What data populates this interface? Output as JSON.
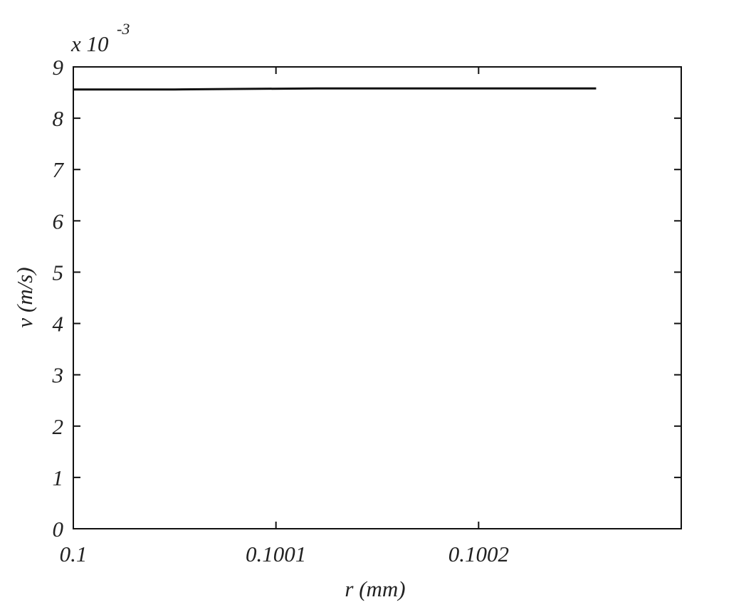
{
  "chart_data": {
    "type": "line",
    "x_label": "r (mm)",
    "y_label": "v (m/s)",
    "y_multiplier": {
      "base": "x 10",
      "exponent": "-3"
    },
    "x": [
      0.1,
      0.10005,
      0.10008,
      0.10012,
      0.100258
    ],
    "series": [
      {
        "color": "#111111",
        "values": [
          8.56,
          8.56,
          8.57,
          8.58,
          8.58
        ]
      }
    ],
    "xlim": [
      0.1,
      0.1003
    ],
    "xticks": [
      0.1,
      0.1001,
      0.1002
    ],
    "ylim": [
      0,
      9
    ],
    "yticks": [
      0,
      1,
      2,
      3,
      4,
      5,
      6,
      7,
      8,
      9
    ]
  }
}
